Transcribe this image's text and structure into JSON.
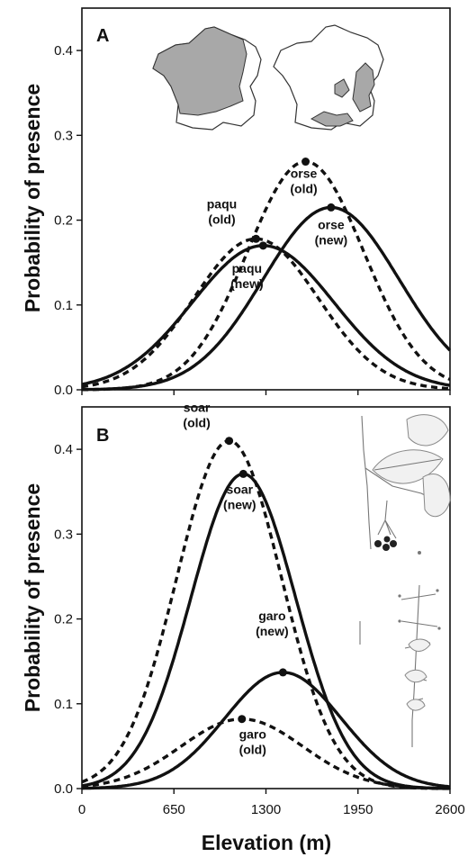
{
  "chart_data": [
    {
      "type": "line",
      "panel": "A",
      "xlabel": "",
      "ylabel": "Probability of presence",
      "xlim": [
        0,
        2600
      ],
      "ylim": [
        0,
        0.45
      ],
      "yticks": [
        "0.0",
        "0.1",
        "0.2",
        "0.3",
        "0.4"
      ],
      "grid": false,
      "series": [
        {
          "name": "paqu (old)",
          "style": "dashed",
          "peak_x": 1230,
          "peak_y": 0.178,
          "sd": 440,
          "label_lines": [
            "paqu",
            "(old)"
          ]
        },
        {
          "name": "paqu (new)",
          "style": "solid",
          "peak_x": 1280,
          "peak_y": 0.17,
          "sd": 500,
          "label_lines": [
            "paqu",
            "(new)"
          ]
        },
        {
          "name": "orse (old)",
          "style": "dashed",
          "peak_x": 1580,
          "peak_y": 0.269,
          "sd": 410,
          "label_lines": [
            "orse",
            "(old)"
          ]
        },
        {
          "name": "orse (new)",
          "style": "solid",
          "peak_x": 1760,
          "peak_y": 0.215,
          "sd": 480,
          "label_lines": [
            "orse",
            "(new)"
          ]
        }
      ]
    },
    {
      "type": "line",
      "panel": "B",
      "xlabel": "Elevation (m)",
      "ylabel": "Probability of presence",
      "xlim": [
        0,
        2600
      ],
      "ylim": [
        0,
        0.45
      ],
      "xticks": [
        "0",
        "650",
        "1300",
        "1950",
        "2600"
      ],
      "yticks": [
        "0.0",
        "0.1",
        "0.2",
        "0.3",
        "0.4"
      ],
      "grid": false,
      "series": [
        {
          "name": "soar (old)",
          "style": "dashed",
          "peak_x": 1040,
          "peak_y": 0.41,
          "sd": 370,
          "label_lines": [
            "soar",
            "(old)"
          ]
        },
        {
          "name": "soar (new)",
          "style": "solid",
          "peak_x": 1140,
          "peak_y": 0.371,
          "sd": 370,
          "label_lines": [
            "soar",
            "(new)"
          ]
        },
        {
          "name": "garo (new)",
          "style": "solid",
          "peak_x": 1420,
          "peak_y": 0.137,
          "sd": 410,
          "label_lines": [
            "garo",
            "(new)"
          ]
        },
        {
          "name": "garo (old)",
          "style": "dashed",
          "peak_x": 1130,
          "peak_y": 0.082,
          "sd": 430,
          "label_lines": [
            "garo",
            "(old)"
          ]
        }
      ]
    }
  ],
  "insets": {
    "panel_a": [
      "france-map-paqu",
      "france-map-orse"
    ],
    "panel_b": [
      "botanical-illustration"
    ]
  },
  "colors": {
    "ink": "#111111",
    "map_fill": "#a8a8a8"
  }
}
